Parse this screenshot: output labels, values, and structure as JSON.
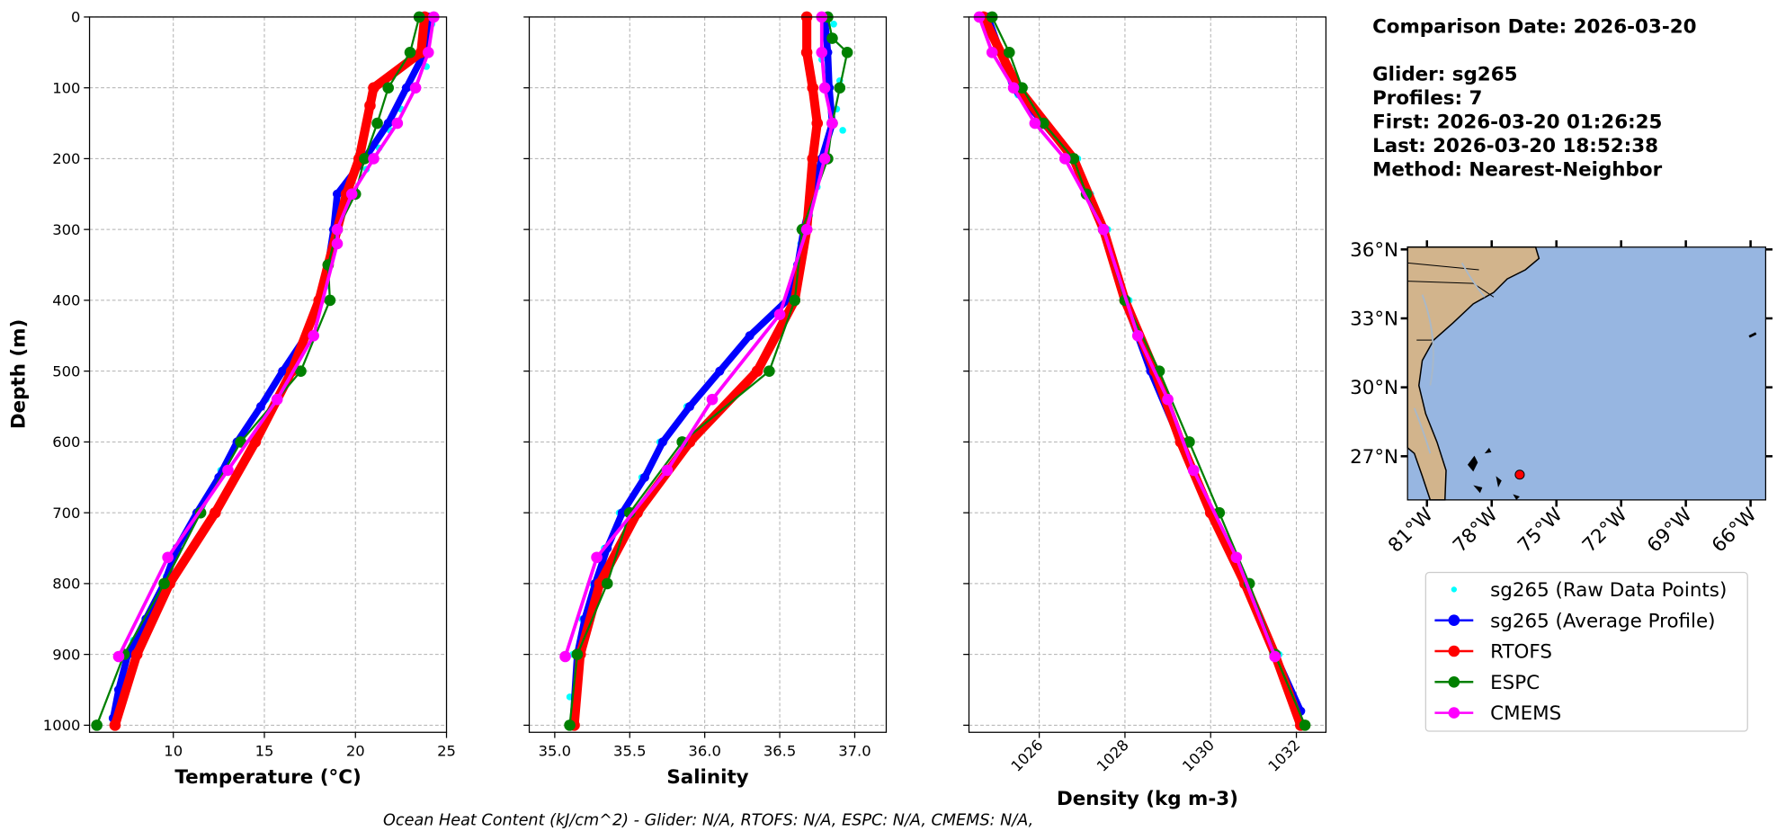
{
  "chart_data": {
    "type": "line",
    "ylabel": "Depth (m)",
    "ylim": [
      0,
      1010
    ],
    "y_inverted": true,
    "yticks": [
      0,
      100,
      200,
      300,
      400,
      500,
      600,
      700,
      800,
      900,
      1000
    ],
    "grid": true,
    "series": [
      {
        "name": "sg265 (Raw Data Points)",
        "color": "#00ffff",
        "line": false,
        "linewidth": 0,
        "markersize": 3
      },
      {
        "name": "sg265 (Average Profile)",
        "color": "#0000ff",
        "line": true,
        "linewidth": 6,
        "markersize": 4
      },
      {
        "name": "RTOFS",
        "color": "#ff0000",
        "line": true,
        "linewidth": 8,
        "markersize": 5
      },
      {
        "name": "ESPC",
        "color": "#008000",
        "line": true,
        "linewidth": 1.8,
        "markersize": 5
      },
      {
        "name": "CMEMS",
        "color": "#ff00ff",
        "line": true,
        "linewidth": 3,
        "markersize": 5
      }
    ],
    "panels": [
      {
        "xlabel": "Temperature (°C)",
        "xlim": [
          5.4,
          25
        ],
        "xticks": [
          10,
          15,
          20,
          25
        ],
        "rotate_xticks": false,
        "data": [
          {
            "x": [
              24.2,
              23.6,
              23.9,
              23.1,
              22.5,
              21.9,
              21.3,
              20.6,
              19.7,
              19.1,
              18.7,
              18.4,
              17.8,
              17.1,
              16.2,
              15.1,
              13.8,
              12.6,
              11.6,
              10.4,
              9.6,
              8.7,
              7.8,
              7.2,
              6.9
            ],
            "values": [
              10,
              40,
              70,
              100,
              130,
              160,
              185,
              215,
              245,
              280,
              330,
              380,
              420,
              460,
              500,
              540,
              590,
              640,
              690,
              740,
              790,
              840,
              880,
              930,
              980
            ]
          },
          {
            "x": [
              24,
              23.8,
              22.8,
              21.8,
              20.5,
              19,
              18.8,
              18.5,
              18,
              17.3,
              16,
              14.8,
              13.5,
              12.5,
              11.3,
              10.2,
              9.5,
              8.5,
              7.5,
              7,
              6.7
            ],
            "values": [
              0,
              50,
              100,
              150,
              200,
              250,
              300,
              350,
              400,
              450,
              500,
              550,
              600,
              650,
              700,
              750,
              800,
              850,
              900,
              950,
              990
            ]
          },
          {
            "x": [
              23.8,
              23.6,
              21,
              20.8,
              20.2,
              19.5,
              19,
              18.5,
              18,
              16.5,
              14.5,
              12.3,
              9.8,
              8,
              6.8
            ],
            "values": [
              0,
              50,
              100,
              125,
              200,
              250,
              300,
              350,
              400,
              500,
              600,
              700,
              800,
              900,
              1000
            ]
          },
          {
            "x": [
              23.5,
              23,
              21.8,
              21.2,
              20.5,
              20,
              19,
              18.5,
              18.6,
              17,
              13.7,
              11.5,
              9.5,
              7.3,
              5.8
            ],
            "values": [
              0,
              50,
              100,
              150,
              200,
              250,
              300,
              350,
              400,
              500,
              600,
              700,
              800,
              900,
              1000
            ]
          },
          {
            "x": [
              24.3,
              24,
              23.3,
              22.3,
              21,
              19.8,
              19,
              19,
              17.7,
              15.7,
              13,
              9.7,
              7
            ],
            "values": [
              0,
              50,
              100,
              150,
              200,
              250,
              300,
              320,
              450,
              540,
              640,
              763,
              903
            ]
          }
        ]
      },
      {
        "xlabel": "Salinity",
        "xlim": [
          34.83,
          37.21
        ],
        "xticks": [
          {
            "value": 35,
            "label": "35.0"
          },
          {
            "value": 35.5,
            "label": "35.5"
          },
          {
            "value": 36,
            "label": "36.0"
          },
          {
            "value": 36.5,
            "label": "36.5"
          },
          {
            "value": 37,
            "label": "37.0"
          }
        ],
        "rotate_xticks": false,
        "data": [
          {
            "x": [
              36.86,
              36.78,
              36.9,
              36.88,
              36.92,
              36.8,
              36.75,
              36.7,
              36.64,
              36.6,
              36.5,
              36.3,
              36.1,
              35.88,
              35.7,
              35.58,
              35.43,
              35.33,
              35.25,
              35.18,
              35.12,
              35.1
            ],
            "values": [
              10,
              60,
              90,
              130,
              160,
              200,
              240,
              280,
              320,
              370,
              410,
              450,
              500,
              550,
              600,
              650,
              700,
              750,
              800,
              850,
              900,
              960
            ]
          },
          {
            "x": [
              36.8,
              36.82,
              36.83,
              36.85,
              36.78,
              36.72,
              36.66,
              36.62,
              36.55,
              36.3,
              36.1,
              35.9,
              35.72,
              35.6,
              35.45,
              35.35,
              35.27,
              35.2,
              35.15,
              35.12
            ],
            "values": [
              0,
              50,
              100,
              150,
              200,
              250,
              300,
              350,
              400,
              450,
              500,
              550,
              600,
              650,
              700,
              750,
              800,
              850,
              900,
              1000
            ]
          },
          {
            "x": [
              36.68,
              36.68,
              36.72,
              36.75,
              36.72,
              36.68,
              36.6,
              36.35,
              35.9,
              35.55,
              35.3,
              35.17,
              35.13
            ],
            "values": [
              0,
              50,
              100,
              150,
              200,
              300,
              400,
              500,
              600,
              700,
              800,
              900,
              1000
            ]
          },
          {
            "x": [
              36.82,
              36.85,
              36.95,
              36.9,
              36.85,
              36.82,
              36.65,
              36.6,
              36.43,
              35.85,
              35.5,
              35.35,
              35.15,
              35.1
            ],
            "values": [
              0,
              30,
              50,
              100,
              150,
              200,
              300,
              400,
              500,
              600,
              700,
              800,
              900,
              1000
            ]
          },
          {
            "x": [
              36.78,
              36.78,
              36.8,
              36.85,
              36.8,
              36.68,
              36.5,
              36.05,
              35.75,
              35.28,
              35.07
            ],
            "values": [
              0,
              50,
              100,
              150,
              200,
              300,
              420,
              540,
              640,
              763,
              903
            ]
          }
        ]
      },
      {
        "xlabel": "Density (kg m-3)",
        "xlim": [
          1024.36,
          1032.69
        ],
        "xticks": [
          1026,
          1028,
          1030,
          1032
        ],
        "rotate_xticks": true,
        "data": [
          {
            "x": [
              1024.9,
              1025.3,
              1025.5,
              1026.1,
              1026.9,
              1027.2,
              1027.6,
              1028.1,
              1028.7,
              1029.4,
              1030.1,
              1030.9,
              1031.6,
              1032.1
            ],
            "values": [
              20,
              70,
              110,
              150,
              200,
              250,
              300,
              400,
              500,
              600,
              700,
              800,
              900,
              980
            ]
          },
          {
            "x": [
              1024.8,
              1025.4,
              1026.8,
              1027.5,
              1028,
              1028.6,
              1029.3,
              1030,
              1030.8,
              1031.5,
              1032.1
            ],
            "values": [
              0,
              100,
              200,
              300,
              400,
              500,
              600,
              700,
              800,
              900,
              980
            ]
          },
          {
            "x": [
              1024.7,
              1025.5,
              1026.8,
              1027.5,
              1028,
              1028.7,
              1029.3,
              1030,
              1030.8,
              1031.5,
              1032.1
            ],
            "values": [
              0,
              100,
              200,
              300,
              400,
              500,
              600,
              700,
              800,
              900,
              1000
            ]
          },
          {
            "x": [
              1024.9,
              1025.3,
              1025.6,
              1026.1,
              1026.8,
              1027.1,
              1027.5,
              1028,
              1028.8,
              1029.5,
              1030.2,
              1030.9,
              1031.5,
              1032.2
            ],
            "values": [
              0,
              50,
              100,
              150,
              200,
              250,
              300,
              400,
              500,
              600,
              700,
              800,
              900,
              1000
            ]
          },
          {
            "x": [
              1024.6,
              1024.9,
              1025.4,
              1025.9,
              1026.6,
              1027.5,
              1028.3,
              1029,
              1029.6,
              1030.6,
              1031.5
            ],
            "values": [
              0,
              50,
              100,
              150,
              200,
              300,
              450,
              540,
              640,
              763,
              903
            ]
          }
        ]
      }
    ],
    "info": [
      "Comparison Date: 2026-03-20",
      "Glider: sg265",
      "Profiles: 7",
      "First: 2026-03-20 01:26:25",
      "Last: 2026-03-20 18:52:38",
      "Method: Nearest-Neighbor"
    ],
    "footer": "Ocean Heat Content (kJ/cm^2) - Glider: N/A,  RTOFS: N/A,  ESPC: N/A,  CMEMS: N/A,",
    "map": {
      "lonlim": [
        -81.9,
        -65.3
      ],
      "latlim": [
        25.1,
        36.1
      ],
      "lonticks": [
        {
          "value": -81,
          "label": "81°W"
        },
        {
          "value": -78,
          "label": "78°W"
        },
        {
          "value": -75,
          "label": "75°W"
        },
        {
          "value": -72,
          "label": "72°W"
        },
        {
          "value": -69,
          "label": "69°W"
        },
        {
          "value": -66,
          "label": "66°W"
        }
      ],
      "latticks": [
        {
          "value": 36,
          "label": "36°N"
        },
        {
          "value": 33,
          "label": "33°N"
        },
        {
          "value": 30,
          "label": "30°N"
        },
        {
          "value": 27,
          "label": "27°N"
        }
      ],
      "glider_lon": -76.7,
      "glider_lat": 26.2,
      "marker_color": "#ff0000"
    }
  }
}
